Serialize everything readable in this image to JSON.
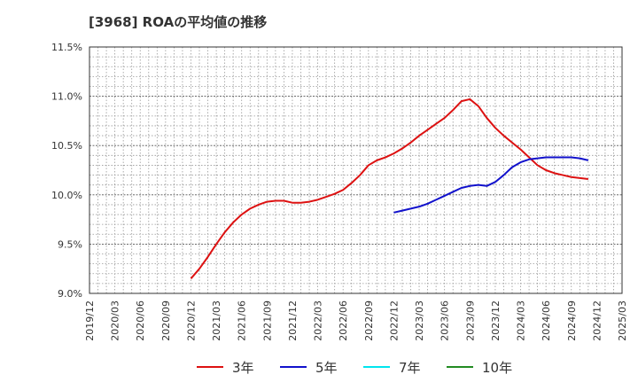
{
  "chart_data": {
    "type": "line",
    "title": "[3968]  ROAの平均値の推移",
    "xlabel": "",
    "ylabel": "",
    "ylim": [
      9.0,
      11.5
    ],
    "yticks": [
      9.0,
      9.5,
      10.0,
      10.5,
      11.0,
      11.5
    ],
    "ytick_labels": [
      "9.0%",
      "9.5%",
      "10.0%",
      "10.5%",
      "11.0%",
      "11.5%"
    ],
    "x_start": "2019/12",
    "x_end": "2025/03",
    "xtick_labels": [
      "2019/12",
      "2020/03",
      "2020/06",
      "2020/09",
      "2020/12",
      "2021/03",
      "2021/06",
      "2021/09",
      "2021/12",
      "2022/03",
      "2022/06",
      "2022/09",
      "2022/12",
      "2023/03",
      "2023/06",
      "2023/09",
      "2023/12",
      "2024/03",
      "2024/06",
      "2024/09",
      "2024/12",
      "2025/03"
    ],
    "grid": true,
    "legend_position": "bottom",
    "series": [
      {
        "name": "3年",
        "color": "#dd1111",
        "points": [
          [
            "2020/12",
            9.15
          ],
          [
            "2021/01",
            9.25
          ],
          [
            "2021/02",
            9.37
          ],
          [
            "2021/03",
            9.5
          ],
          [
            "2021/04",
            9.62
          ],
          [
            "2021/05",
            9.72
          ],
          [
            "2021/06",
            9.8
          ],
          [
            "2021/07",
            9.86
          ],
          [
            "2021/08",
            9.9
          ],
          [
            "2021/09",
            9.93
          ],
          [
            "2021/10",
            9.94
          ],
          [
            "2021/11",
            9.94
          ],
          [
            "2021/12",
            9.92
          ],
          [
            "2022/01",
            9.92
          ],
          [
            "2022/02",
            9.93
          ],
          [
            "2022/03",
            9.95
          ],
          [
            "2022/04",
            9.98
          ],
          [
            "2022/05",
            10.01
          ],
          [
            "2022/06",
            10.05
          ],
          [
            "2022/07",
            10.12
          ],
          [
            "2022/08",
            10.2
          ],
          [
            "2022/09",
            10.3
          ],
          [
            "2022/10",
            10.35
          ],
          [
            "2022/11",
            10.38
          ],
          [
            "2022/12",
            10.42
          ],
          [
            "2023/01",
            10.47
          ],
          [
            "2023/02",
            10.53
          ],
          [
            "2023/03",
            10.6
          ],
          [
            "2023/04",
            10.66
          ],
          [
            "2023/05",
            10.72
          ],
          [
            "2023/06",
            10.78
          ],
          [
            "2023/07",
            10.86
          ],
          [
            "2023/08",
            10.95
          ],
          [
            "2023/09",
            10.97
          ],
          [
            "2023/10",
            10.9
          ],
          [
            "2023/11",
            10.78
          ],
          [
            "2023/12",
            10.68
          ],
          [
            "2024/01",
            10.6
          ],
          [
            "2024/02",
            10.53
          ],
          [
            "2024/03",
            10.46
          ],
          [
            "2024/04",
            10.38
          ],
          [
            "2024/05",
            10.3
          ],
          [
            "2024/06",
            10.25
          ],
          [
            "2024/07",
            10.22
          ],
          [
            "2024/08",
            10.2
          ],
          [
            "2024/09",
            10.18
          ],
          [
            "2024/10",
            10.17
          ],
          [
            "2024/11",
            10.16
          ]
        ]
      },
      {
        "name": "5年",
        "color": "#1111cc",
        "points": [
          [
            "2022/12",
            9.82
          ],
          [
            "2023/01",
            9.84
          ],
          [
            "2023/02",
            9.86
          ],
          [
            "2023/03",
            9.88
          ],
          [
            "2023/04",
            9.91
          ],
          [
            "2023/05",
            9.95
          ],
          [
            "2023/06",
            9.99
          ],
          [
            "2023/07",
            10.03
          ],
          [
            "2023/08",
            10.07
          ],
          [
            "2023/09",
            10.09
          ],
          [
            "2023/10",
            10.1
          ],
          [
            "2023/11",
            10.09
          ],
          [
            "2023/12",
            10.13
          ],
          [
            "2024/01",
            10.2
          ],
          [
            "2024/02",
            10.28
          ],
          [
            "2024/03",
            10.33
          ],
          [
            "2024/04",
            10.36
          ],
          [
            "2024/05",
            10.37
          ],
          [
            "2024/06",
            10.38
          ],
          [
            "2024/07",
            10.38
          ],
          [
            "2024/08",
            10.38
          ],
          [
            "2024/09",
            10.38
          ],
          [
            "2024/10",
            10.37
          ],
          [
            "2024/11",
            10.35
          ]
        ]
      },
      {
        "name": "7年",
        "color": "#00e5ee",
        "points": []
      },
      {
        "name": "10年",
        "color": "#228b22",
        "points": []
      }
    ]
  }
}
